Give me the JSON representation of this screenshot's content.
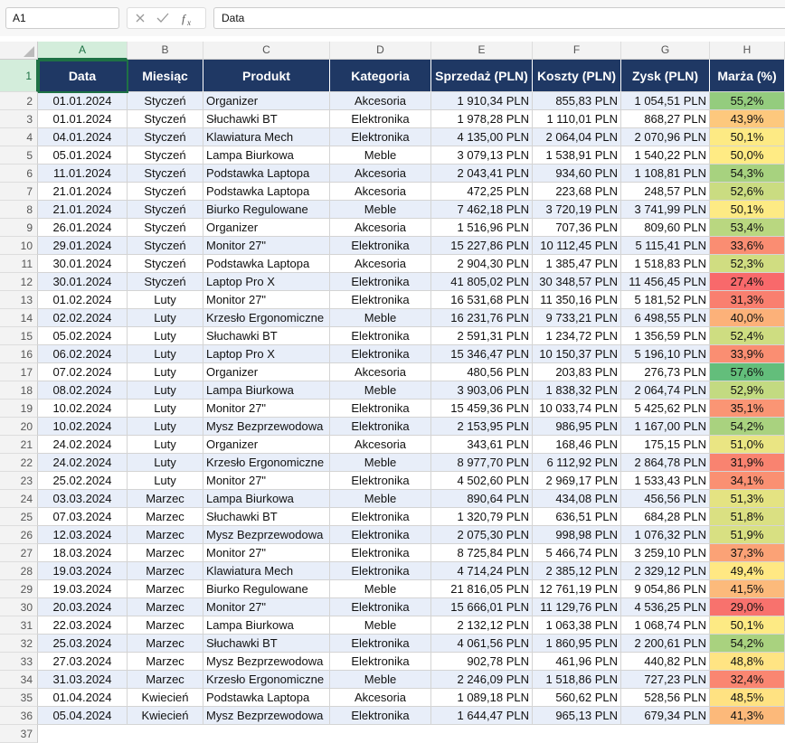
{
  "formula_bar": {
    "name_box": "A1",
    "formula": "Data"
  },
  "column_headers": [
    "A",
    "B",
    "C",
    "D",
    "E",
    "F",
    "G",
    "H"
  ],
  "row_numbers": [
    1,
    2,
    3,
    4,
    5,
    6,
    7,
    8,
    9,
    10,
    11,
    12,
    13,
    14,
    15,
    16,
    17,
    18,
    19,
    20,
    21,
    22,
    23,
    24,
    25,
    26,
    27,
    28,
    29,
    30,
    31,
    32,
    33,
    34,
    35,
    36,
    37
  ],
  "table": {
    "header": [
      "Data",
      "Miesiąc",
      "Produkt",
      "Kategoria",
      "Sprzedaż (PLN)",
      "Koszty (PLN)",
      "Zysk (PLN)",
      "Marża (%)"
    ],
    "rows": [
      [
        "01.01.2024",
        "Styczeń",
        "Organizer",
        "Akcesoria",
        "1 910,34 PLN",
        "855,83 PLN",
        "1 054,51 PLN",
        "55,2%"
      ],
      [
        "01.01.2024",
        "Styczeń",
        "Słuchawki BT",
        "Elektronika",
        "1 978,28 PLN",
        "1 110,01 PLN",
        "868,27 PLN",
        "43,9%"
      ],
      [
        "04.01.2024",
        "Styczeń",
        "Klawiatura Mech",
        "Elektronika",
        "4 135,00 PLN",
        "2 064,04 PLN",
        "2 070,96 PLN",
        "50,1%"
      ],
      [
        "05.01.2024",
        "Styczeń",
        "Lampa Biurkowa",
        "Meble",
        "3 079,13 PLN",
        "1 538,91 PLN",
        "1 540,22 PLN",
        "50,0%"
      ],
      [
        "11.01.2024",
        "Styczeń",
        "Podstawka Laptopa",
        "Akcesoria",
        "2 043,41 PLN",
        "934,60 PLN",
        "1 108,81 PLN",
        "54,3%"
      ],
      [
        "21.01.2024",
        "Styczeń",
        "Podstawka Laptopa",
        "Akcesoria",
        "472,25 PLN",
        "223,68 PLN",
        "248,57 PLN",
        "52,6%"
      ],
      [
        "21.01.2024",
        "Styczeń",
        "Biurko Regulowane",
        "Meble",
        "7 462,18 PLN",
        "3 720,19 PLN",
        "3 741,99 PLN",
        "50,1%"
      ],
      [
        "26.01.2024",
        "Styczeń",
        "Organizer",
        "Akcesoria",
        "1 516,96 PLN",
        "707,36 PLN",
        "809,60 PLN",
        "53,4%"
      ],
      [
        "29.01.2024",
        "Styczeń",
        "Monitor 27\"",
        "Elektronika",
        "15 227,86 PLN",
        "10 112,45 PLN",
        "5 115,41 PLN",
        "33,6%"
      ],
      [
        "30.01.2024",
        "Styczeń",
        "Podstawka Laptopa",
        "Akcesoria",
        "2 904,30 PLN",
        "1 385,47 PLN",
        "1 518,83 PLN",
        "52,3%"
      ],
      [
        "30.01.2024",
        "Styczeń",
        "Laptop Pro X",
        "Elektronika",
        "41 805,02 PLN",
        "30 348,57 PLN",
        "11 456,45 PLN",
        "27,4%"
      ],
      [
        "01.02.2024",
        "Luty",
        "Monitor 27\"",
        "Elektronika",
        "16 531,68 PLN",
        "11 350,16 PLN",
        "5 181,52 PLN",
        "31,3%"
      ],
      [
        "02.02.2024",
        "Luty",
        "Krzesło Ergonomiczne",
        "Meble",
        "16 231,76 PLN",
        "9 733,21 PLN",
        "6 498,55 PLN",
        "40,0%"
      ],
      [
        "05.02.2024",
        "Luty",
        "Słuchawki BT",
        "Elektronika",
        "2 591,31 PLN",
        "1 234,72 PLN",
        "1 356,59 PLN",
        "52,4%"
      ],
      [
        "06.02.2024",
        "Luty",
        "Laptop Pro X",
        "Elektronika",
        "15 346,47 PLN",
        "10 150,37 PLN",
        "5 196,10 PLN",
        "33,9%"
      ],
      [
        "07.02.2024",
        "Luty",
        "Organizer",
        "Akcesoria",
        "480,56 PLN",
        "203,83 PLN",
        "276,73 PLN",
        "57,6%"
      ],
      [
        "08.02.2024",
        "Luty",
        "Lampa Biurkowa",
        "Meble",
        "3 903,06 PLN",
        "1 838,32 PLN",
        "2 064,74 PLN",
        "52,9%"
      ],
      [
        "10.02.2024",
        "Luty",
        "Monitor 27\"",
        "Elektronika",
        "15 459,36 PLN",
        "10 033,74 PLN",
        "5 425,62 PLN",
        "35,1%"
      ],
      [
        "10.02.2024",
        "Luty",
        "Mysz Bezprzewodowa",
        "Elektronika",
        "2 153,95 PLN",
        "986,95 PLN",
        "1 167,00 PLN",
        "54,2%"
      ],
      [
        "24.02.2024",
        "Luty",
        "Organizer",
        "Akcesoria",
        "343,61 PLN",
        "168,46 PLN",
        "175,15 PLN",
        "51,0%"
      ],
      [
        "24.02.2024",
        "Luty",
        "Krzesło Ergonomiczne",
        "Meble",
        "8 977,70 PLN",
        "6 112,92 PLN",
        "2 864,78 PLN",
        "31,9%"
      ],
      [
        "25.02.2024",
        "Luty",
        "Monitor 27\"",
        "Elektronika",
        "4 502,60 PLN",
        "2 969,17 PLN",
        "1 533,43 PLN",
        "34,1%"
      ],
      [
        "03.03.2024",
        "Marzec",
        "Lampa Biurkowa",
        "Meble",
        "890,64 PLN",
        "434,08 PLN",
        "456,56 PLN",
        "51,3%"
      ],
      [
        "07.03.2024",
        "Marzec",
        "Słuchawki BT",
        "Elektronika",
        "1 320,79 PLN",
        "636,51 PLN",
        "684,28 PLN",
        "51,8%"
      ],
      [
        "12.03.2024",
        "Marzec",
        "Mysz Bezprzewodowa",
        "Elektronika",
        "2 075,30 PLN",
        "998,98 PLN",
        "1 076,32 PLN",
        "51,9%"
      ],
      [
        "18.03.2024",
        "Marzec",
        "Monitor 27\"",
        "Elektronika",
        "8 725,84 PLN",
        "5 466,74 PLN",
        "3 259,10 PLN",
        "37,3%"
      ],
      [
        "19.03.2024",
        "Marzec",
        "Klawiatura Mech",
        "Elektronika",
        "4 714,24 PLN",
        "2 385,12 PLN",
        "2 329,12 PLN",
        "49,4%"
      ],
      [
        "19.03.2024",
        "Marzec",
        "Biurko Regulowane",
        "Meble",
        "21 816,05 PLN",
        "12 761,19 PLN",
        "9 054,86 PLN",
        "41,5%"
      ],
      [
        "20.03.2024",
        "Marzec",
        "Monitor 27\"",
        "Elektronika",
        "15 666,01 PLN",
        "11 129,76 PLN",
        "4 536,25 PLN",
        "29,0%"
      ],
      [
        "22.03.2024",
        "Marzec",
        "Lampa Biurkowa",
        "Meble",
        "2 132,12 PLN",
        "1 063,38 PLN",
        "1 068,74 PLN",
        "50,1%"
      ],
      [
        "25.03.2024",
        "Marzec",
        "Słuchawki BT",
        "Elektronika",
        "4 061,56 PLN",
        "1 860,95 PLN",
        "2 200,61 PLN",
        "54,2%"
      ],
      [
        "27.03.2024",
        "Marzec",
        "Mysz Bezprzewodowa",
        "Elektronika",
        "902,78 PLN",
        "461,96 PLN",
        "440,82 PLN",
        "48,8%"
      ],
      [
        "31.03.2024",
        "Marzec",
        "Krzesło Ergonomiczne",
        "Meble",
        "2 246,09 PLN",
        "1 518,86 PLN",
        "727,23 PLN",
        "32,4%"
      ],
      [
        "01.04.2024",
        "Kwiecień",
        "Podstawka Laptopa",
        "Akcesoria",
        "1 089,18 PLN",
        "560,62 PLN",
        "528,56 PLN",
        "48,5%"
      ],
      [
        "05.04.2024",
        "Kwiecień",
        "Mysz Bezprzewodowa",
        "Elektronika",
        "1 644,47 PLN",
        "965,13 PLN",
        "679,34 PLN",
        "41,3%"
      ]
    ]
  }
}
